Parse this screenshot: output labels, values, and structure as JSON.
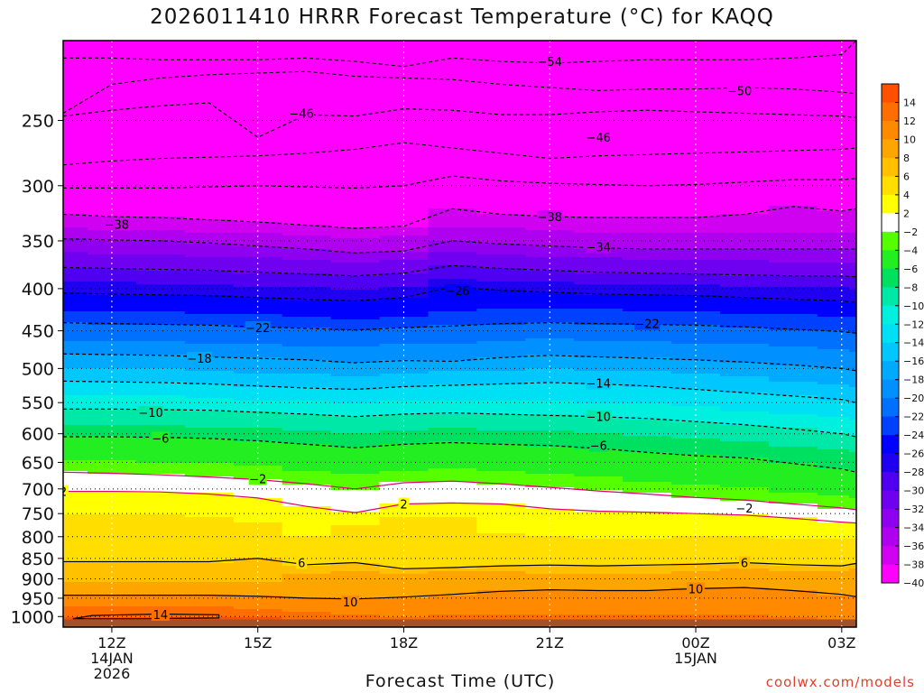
{
  "chart_data": {
    "type": "contour",
    "title": "2026011410 HRRR Forecast Temperature (°C) for KAQQ",
    "xlabel": "Forecast Time (UTC)",
    "credit": "coolwx.com/models",
    "x_hours": [
      11,
      12,
      13,
      14,
      15,
      16,
      17,
      18,
      19,
      20,
      21,
      22,
      23,
      24,
      25,
      26,
      27,
      27.3
    ],
    "x_ticks": [
      {
        "hour": 12,
        "lines": [
          "12Z",
          "14JAN",
          "2026"
        ]
      },
      {
        "hour": 15,
        "lines": [
          "15Z"
        ]
      },
      {
        "hour": 18,
        "lines": [
          "18Z"
        ]
      },
      {
        "hour": 21,
        "lines": [
          "21Z"
        ]
      },
      {
        "hour": 24,
        "lines": [
          "00Z",
          "15JAN"
        ]
      },
      {
        "hour": 27,
        "lines": [
          "03Z"
        ]
      }
    ],
    "y_pressure_ticks": [
      250,
      300,
      350,
      400,
      450,
      500,
      550,
      600,
      650,
      700,
      750,
      800,
      850,
      900,
      950,
      1000
    ],
    "y_range_hPa": [
      200,
      1030
    ],
    "surface_pressure_hPa": 1008,
    "colorbar_labels": [
      "14",
      "12",
      "10",
      "8",
      "6",
      "4",
      "2",
      "-2",
      "-4",
      "-6",
      "-8",
      "-10",
      "-12",
      "-14",
      "-16",
      "-18",
      "-20",
      "-22",
      "-24",
      "-26",
      "-28",
      "-30",
      "-32",
      "-34",
      "-36",
      "-38",
      "-40"
    ],
    "color_levels": [
      {
        "min": 14,
        "color": "#ff5000"
      },
      {
        "min": 12,
        "color": "#ff6e00"
      },
      {
        "min": 10,
        "color": "#ff8a00"
      },
      {
        "min": 8,
        "color": "#ffa500"
      },
      {
        "min": 6,
        "color": "#ffc000"
      },
      {
        "min": 4,
        "color": "#ffde00"
      },
      {
        "min": 2,
        "color": "#ffff00"
      },
      {
        "min": -2,
        "color": "#ffffff"
      },
      {
        "min": -4,
        "color": "#55ff00"
      },
      {
        "min": -6,
        "color": "#22ee22"
      },
      {
        "min": -8,
        "color": "#00e060"
      },
      {
        "min": -10,
        "color": "#00e8a8"
      },
      {
        "min": -12,
        "color": "#00f0e0"
      },
      {
        "min": -14,
        "color": "#00e0f5"
      },
      {
        "min": -16,
        "color": "#00c8ff"
      },
      {
        "min": -18,
        "color": "#00aaff"
      },
      {
        "min": -20,
        "color": "#0090ff"
      },
      {
        "min": -22,
        "color": "#0070ff"
      },
      {
        "min": -24,
        "color": "#0040ff"
      },
      {
        "min": -26,
        "color": "#0000ff"
      },
      {
        "min": -28,
        "color": "#2000f0"
      },
      {
        "min": -30,
        "color": "#5000f0"
      },
      {
        "min": -32,
        "color": "#7000f0"
      },
      {
        "min": -34,
        "color": "#9000f0"
      },
      {
        "min": -36,
        "color": "#b000f0"
      },
      {
        "min": -38,
        "color": "#d000f0"
      },
      {
        "min": -999,
        "color": "#ff00ff"
      }
    ],
    "isotherms": [
      {
        "t": 14,
        "p": [
          1003,
          1001,
          999,
          999,
          1001,
          1008,
          1008,
          1008,
          1008,
          1008,
          1008,
          1008,
          1008,
          1008,
          1008,
          1008,
          1008,
          1008
        ]
      },
      {
        "t": 12,
        "p": [
          975,
          975,
          975,
          975,
          978,
          985,
          992,
          999,
          995,
          992,
          993,
          995,
          996,
          994,
          996,
          1003,
          1008,
          1008
        ]
      },
      {
        "t": 10,
        "p": [
          942,
          942,
          942,
          942,
          945,
          950,
          952,
          947,
          940,
          932,
          928,
          930,
          930,
          925,
          922,
          930,
          940,
          946
        ]
      },
      {
        "t": 8,
        "p": [
          905,
          905,
          905,
          905,
          905,
          890,
          880,
          888,
          883,
          882,
          885,
          888,
          885,
          878,
          872,
          878,
          882,
          876
        ]
      },
      {
        "t": 6,
        "p": [
          858,
          858,
          858,
          858,
          850,
          865,
          860,
          875,
          872,
          868,
          866,
          868,
          866,
          864,
          860,
          865,
          868,
          862
        ]
      },
      {
        "t": 4,
        "p": [
          752,
          754,
          754,
          756,
          770,
          800,
          775,
          760,
          755,
          790,
          800,
          805,
          802,
          800,
          800,
          803,
          804,
          802
        ]
      },
      {
        "t": 2,
        "p": [
          705,
          705,
          706,
          710,
          718,
          735,
          748,
          730,
          728,
          730,
          740,
          745,
          747,
          750,
          753,
          760,
          768,
          770
        ]
      },
      {
        "t": -2,
        "p": [
          668,
          670,
          673,
          677,
          682,
          690,
          700,
          688,
          685,
          690,
          697,
          704,
          710,
          717,
          722,
          730,
          738,
          742
        ]
      },
      {
        "t": -4,
        "p": [
          645,
          647,
          650,
          653,
          657,
          664,
          672,
          665,
          662,
          667,
          672,
          678,
          685,
          690,
          697,
          705,
          715,
          720
        ]
      },
      {
        "t": -6,
        "p": [
          605,
          605,
          606,
          608,
          612,
          618,
          624,
          618,
          615,
          618,
          620,
          625,
          632,
          638,
          642,
          652,
          662,
          668
        ]
      },
      {
        "t": -8,
        "p": [
          585,
          585,
          586,
          588,
          590,
          594,
          598,
          594,
          592,
          594,
          596,
          600,
          604,
          608,
          612,
          620,
          628,
          632
        ]
      },
      {
        "t": -10,
        "p": [
          560,
          560,
          561,
          562,
          565,
          568,
          572,
          568,
          566,
          568,
          570,
          572,
          575,
          580,
          585,
          592,
          600,
          605
        ]
      },
      {
        "t": -12,
        "p": [
          538,
          539,
          540,
          542,
          545,
          548,
          550,
          548,
          546,
          547,
          548,
          550,
          553,
          557,
          562,
          568,
          573,
          578
        ]
      },
      {
        "t": -14,
        "p": [
          518,
          519,
          520,
          522,
          525,
          528,
          530,
          526,
          524,
          522,
          520,
          522,
          525,
          530,
          535,
          540,
          545,
          550
        ]
      },
      {
        "t": -16,
        "p": [
          498,
          500,
          501,
          503,
          506,
          508,
          510,
          507,
          505,
          502,
          500,
          502,
          505,
          508,
          512,
          517,
          522,
          526
        ]
      },
      {
        "t": -18,
        "p": [
          480,
          481,
          482,
          484,
          486,
          488,
          492,
          489,
          490,
          485,
          482,
          484,
          486,
          488,
          491,
          495,
          500,
          503
        ]
      },
      {
        "t": -20,
        "p": [
          462,
          463,
          464,
          465,
          467,
          469,
          471,
          468,
          466,
          462,
          460,
          462,
          463,
          465,
          467,
          470,
          474,
          476
        ]
      },
      {
        "t": -22,
        "p": [
          440,
          441,
          442,
          443,
          445,
          447,
          449,
          446,
          444,
          441,
          440,
          441,
          442,
          443,
          445,
          448,
          451,
          453
        ]
      },
      {
        "t": -24,
        "p": [
          425,
          426,
          427,
          428,
          430,
          432,
          435,
          432,
          427,
          424,
          423,
          424,
          425,
          426,
          428,
          430,
          432,
          434
        ]
      },
      {
        "t": -26,
        "p": [
          405,
          406,
          407,
          408,
          410,
          412,
          414,
          410,
          398,
          402,
          404,
          406,
          407,
          408,
          410,
          412,
          414,
          416
        ]
      },
      {
        "t": -28,
        "p": [
          392,
          393,
          394,
          395,
          397,
          399,
          401,
          398,
          390,
          392,
          393,
          394,
          395,
          396,
          397,
          398,
          399,
          400
        ]
      },
      {
        "t": -30,
        "p": [
          377,
          378,
          379,
          380,
          382,
          384,
          386,
          383,
          375,
          378,
          380,
          382,
          383,
          384,
          385,
          386,
          386,
          387
        ]
      },
      {
        "t": -32,
        "p": [
          362,
          363,
          364,
          365,
          367,
          369,
          371,
          368,
          360,
          363,
          365,
          367,
          368,
          369,
          370,
          371,
          371,
          372
        ]
      },
      {
        "t": -34,
        "p": [
          348,
          349,
          350,
          352,
          355,
          358,
          362,
          360,
          350,
          353,
          355,
          357,
          358,
          358,
          358,
          358,
          358,
          358
        ]
      },
      {
        "t": -36,
        "p": [
          338,
          339,
          340,
          341,
          343,
          345,
          347,
          344,
          336,
          338,
          340,
          341,
          342,
          342,
          342,
          342,
          342,
          342
        ]
      },
      {
        "t": -38,
        "p": [
          325,
          327,
          328,
          330,
          332,
          335,
          338,
          336,
          320,
          325,
          327,
          328,
          328,
          328,
          325,
          318,
          322,
          320
        ]
      },
      {
        "t": -42,
        "p": [
          302,
          302,
          302,
          301,
          300,
          301,
          302,
          300,
          292,
          296,
          298,
          299,
          300,
          299,
          297,
          295,
          295,
          294
        ]
      },
      {
        "t": -46,
        "p": [
          247,
          243,
          240,
          238,
          262,
          246,
          247,
          242,
          243,
          246,
          246,
          244,
          243,
          244,
          245,
          246,
          247,
          248
        ]
      }
    ],
    "contour_labels": [
      {
        "text": "14",
        "hour": 13,
        "p": 994
      },
      {
        "text": "10",
        "hour": 16.9,
        "p": 960
      },
      {
        "text": "10",
        "hour": 24,
        "p": 925
      },
      {
        "text": "6",
        "hour": 15.9,
        "p": 860
      },
      {
        "text": "6",
        "hour": 25,
        "p": 860
      },
      {
        "text": "2",
        "hour": 11,
        "p": 705
      },
      {
        "text": "2",
        "hour": 18,
        "p": 730
      },
      {
        "text": "-2",
        "hour": 15,
        "p": 680
      },
      {
        "text": "-2",
        "hour": 25,
        "p": 738
      },
      {
        "text": "-6",
        "hour": 13,
        "p": 607
      },
      {
        "text": "-6",
        "hour": 22,
        "p": 620
      },
      {
        "text": "-10",
        "hour": 12.8,
        "p": 565
      },
      {
        "text": "-10",
        "hour": 22,
        "p": 572
      },
      {
        "text": "-14",
        "hour": 22,
        "p": 521
      },
      {
        "text": "-18",
        "hour": 13.8,
        "p": 486
      },
      {
        "text": "-22",
        "hour": 15,
        "p": 446
      },
      {
        "text": "-22",
        "hour": 23,
        "p": 441
      },
      {
        "text": "-26",
        "hour": 19.1,
        "p": 402
      },
      {
        "text": "-34",
        "hour": 22,
        "p": 356
      },
      {
        "text": "-38",
        "hour": 12.1,
        "p": 334
      },
      {
        "text": "-38",
        "hour": 21,
        "p": 327
      },
      {
        "text": "-46",
        "hour": 15.9,
        "p": 245
      },
      {
        "text": "-46",
        "hour": 22,
        "p": 262
      },
      {
        "text": "-50",
        "hour": 24.9,
        "p": 230
      },
      {
        "text": "-54",
        "hour": 21,
        "p": 212
      }
    ],
    "extra_dashed_lines": [
      {
        "name": "upper-isotherm-a",
        "p": [
          210,
          210,
          211,
          211,
          211,
          210,
          212,
          215,
          210,
          212,
          213,
          212,
          211,
          211,
          211,
          210,
          208,
          200
        ]
      },
      {
        "name": "upper-isotherm-b",
        "p": [
          245,
          226,
          222,
          220,
          219,
          218,
          221,
          222,
          223,
          226,
          228,
          230,
          229,
          229,
          228,
          229,
          231,
          232
        ]
      },
      {
        "name": "upper-isotherm-c",
        "p": [
          283,
          280,
          278,
          277,
          276,
          274,
          271,
          266,
          270,
          274,
          278,
          276,
          275,
          274,
          273,
          272,
          271,
          270
        ]
      }
    ]
  }
}
